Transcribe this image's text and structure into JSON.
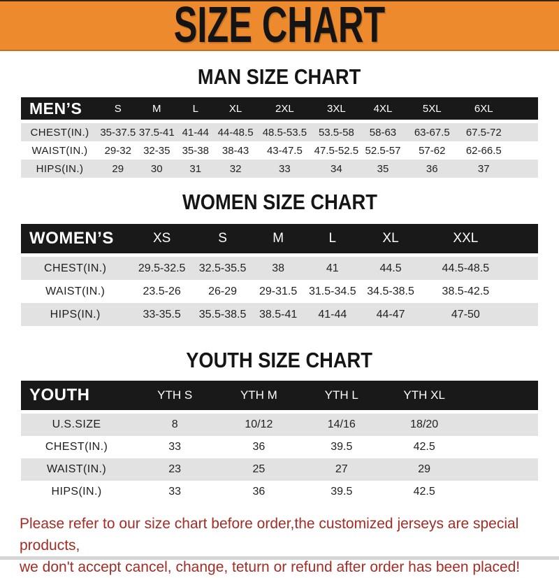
{
  "page_title": "SIZE CHART",
  "colors": {
    "banner_orange": "#EC8A2D",
    "band_black": "#191919",
    "row_gray": "#E2E2E2",
    "notice_red": "#A32C25"
  },
  "chart_data": [
    {
      "type": "table",
      "title": "MAN SIZE CHART",
      "row_header": "MEN’S",
      "columns": [
        "S",
        "M",
        "L",
        "XL",
        "2XL",
        "3XL",
        "4XL",
        "5XL",
        "6XL"
      ],
      "rows": [
        {
          "label": "CHEST(IN.)",
          "values": [
            "35-37.5",
            "37.5-41",
            "41-44",
            "44-48.5",
            "48.5-53.5",
            "53.5-58",
            "58-63",
            "63-67.5",
            "67.5-72"
          ]
        },
        {
          "label": "WAIST(IN.)",
          "values": [
            "29-32",
            "32-35",
            "35-38",
            "38-43",
            "43-47.5",
            "47.5-52.5",
            "52.5-57",
            "57-62",
            "62-66.5"
          ]
        },
        {
          "label": "HIPS(IN.)",
          "values": [
            "29",
            "30",
            "31",
            "32",
            "33",
            "34",
            "35",
            "36",
            "37"
          ]
        }
      ]
    },
    {
      "type": "table",
      "title": "WOMEN SIZE CHART",
      "row_header": "WOMEN’S",
      "columns": [
        "XS",
        "S",
        "M",
        "L",
        "XL",
        "XXL"
      ],
      "rows": [
        {
          "label": "CHEST(IN.)",
          "values": [
            "29.5-32.5",
            "32.5-35.5",
            "38",
            "41",
            "44.5",
            "44.5-48.5"
          ]
        },
        {
          "label": "WAIST(IN.)",
          "values": [
            "23.5-26",
            "26-29",
            "29-31.5",
            "31.5-34.5",
            "34.5-38.5",
            "38.5-42.5"
          ]
        },
        {
          "label": "HIPS(IN.)",
          "values": [
            "33-35.5",
            "35.5-38.5",
            "38.5-41",
            "41-44",
            "44-47",
            "47-50"
          ]
        }
      ]
    },
    {
      "type": "table",
      "title": "YOUTH SIZE CHART",
      "row_header": "YOUTH",
      "columns": [
        "YTH S",
        "YTH M",
        "YTH L",
        "YTH XL"
      ],
      "rows": [
        {
          "label": "U.S.SIZE",
          "values": [
            "8",
            "10/12",
            "14/16",
            "18/20"
          ]
        },
        {
          "label": "CHEST(IN.)",
          "values": [
            "33",
            "36",
            "39.5",
            "42.5"
          ]
        },
        {
          "label": "WAIST(IN.)",
          "values": [
            "23",
            "25",
            "27",
            "29"
          ]
        },
        {
          "label": "HIPS(IN.)",
          "values": [
            "33",
            "36",
            "39.5",
            "42.5"
          ]
        }
      ]
    }
  ],
  "footer": {
    "line1": "Please refer to our size chart before order,the customized jerseys are special products,",
    "line2": "we don't accept cancel, change, teturn or refund after order has been placed!"
  }
}
